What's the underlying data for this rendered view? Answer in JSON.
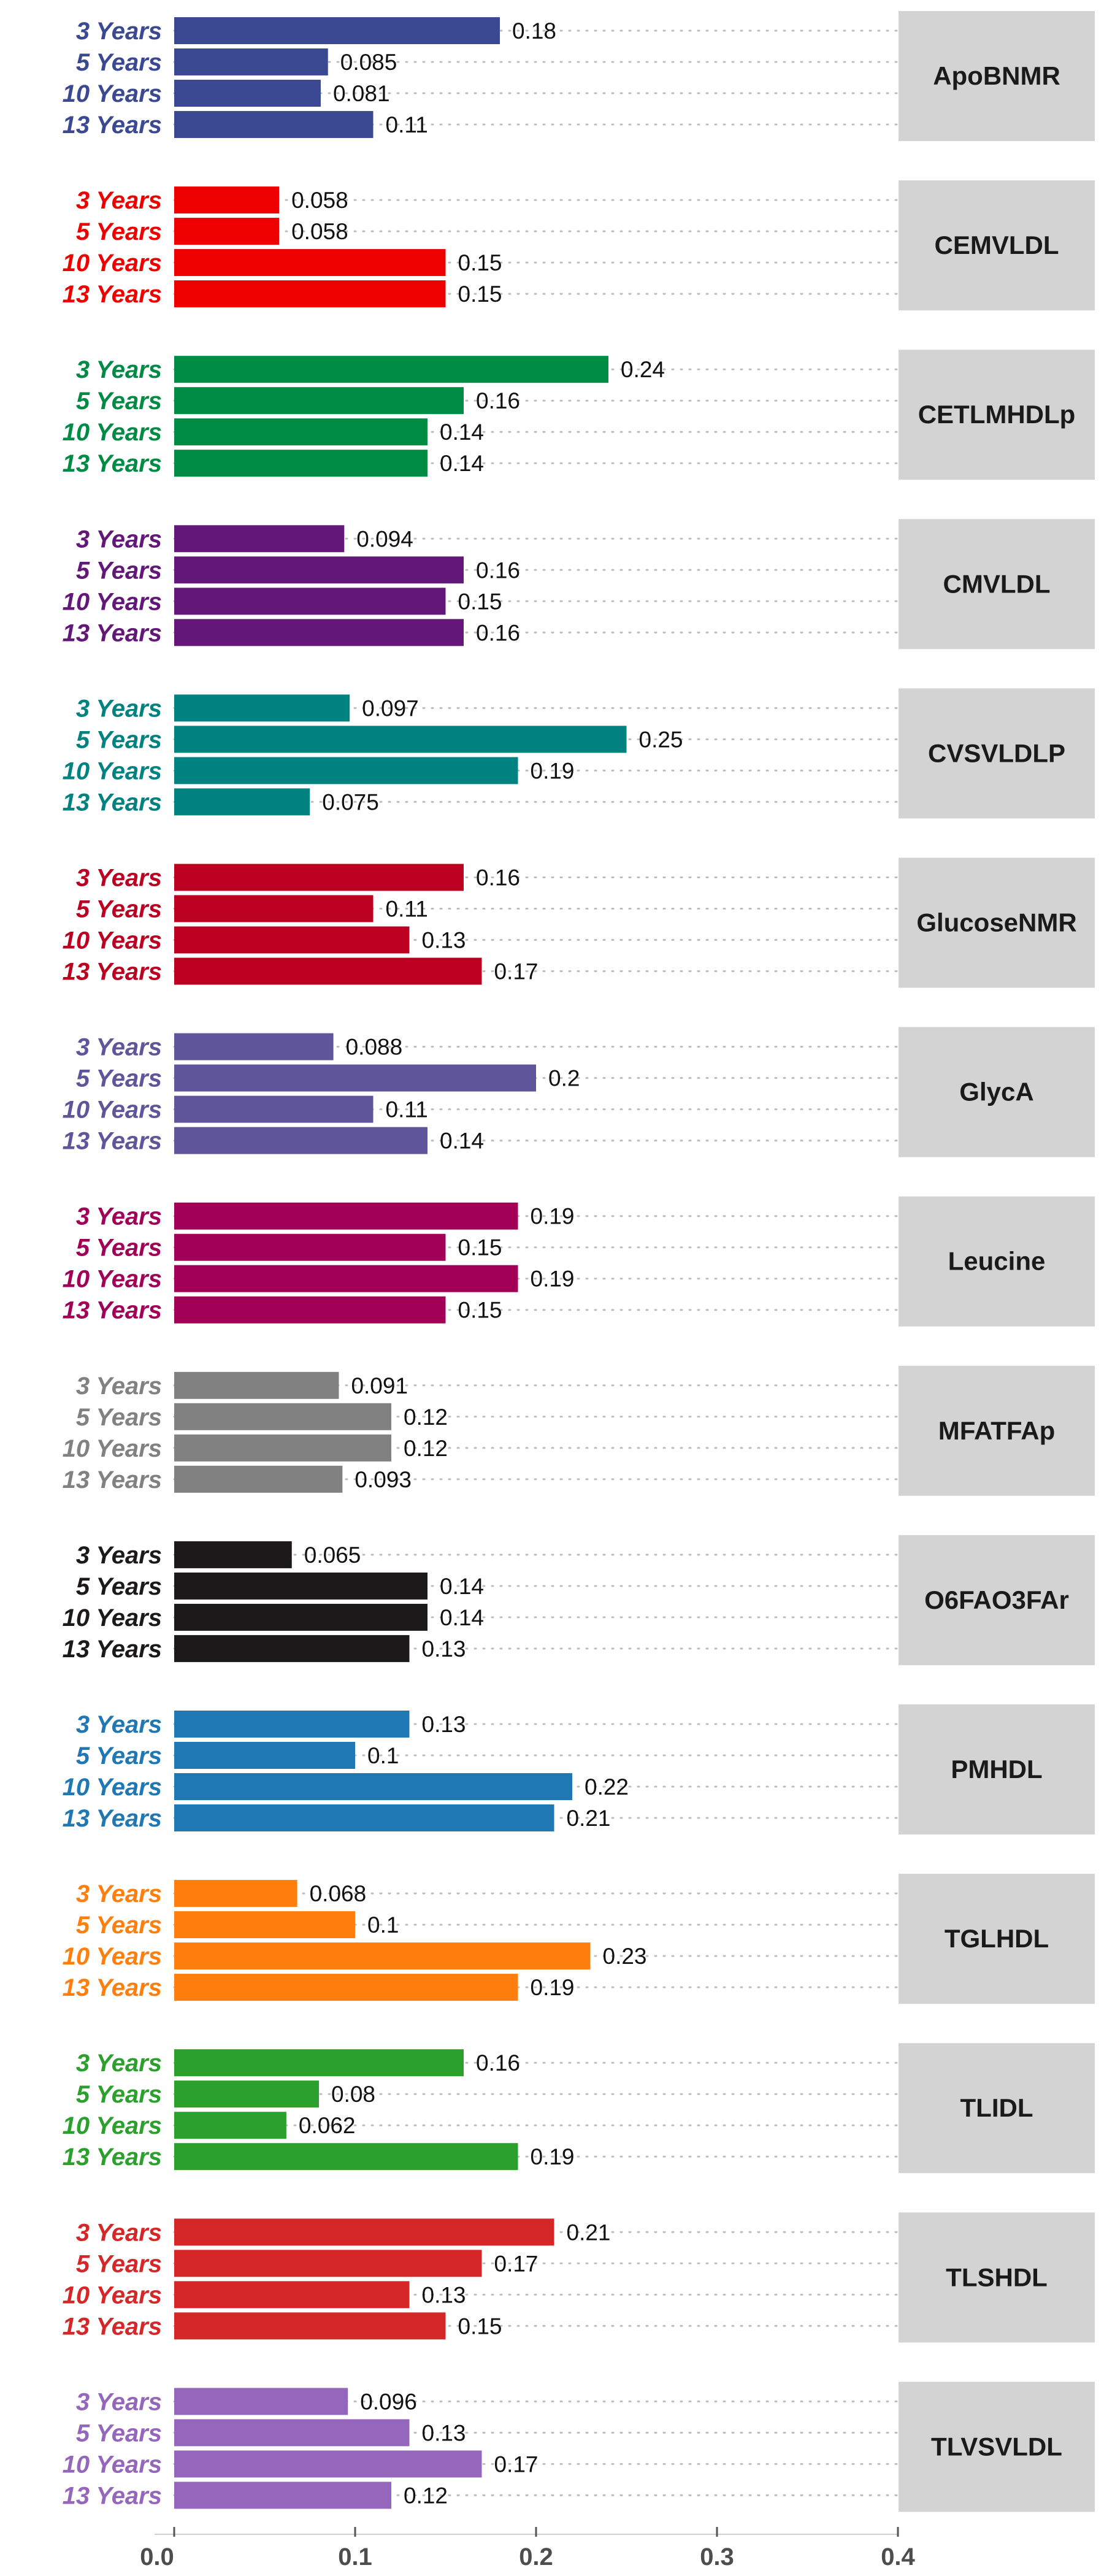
{
  "chart_data": {
    "type": "bar",
    "orientation": "horizontal",
    "layout": "faceted",
    "categories": [
      "3 Years",
      "5 Years",
      "10 Years",
      "13 Years"
    ],
    "xlim": [
      0,
      0.4
    ],
    "xticks": [
      0,
      0.1,
      0.2,
      0.3,
      0.4
    ],
    "xtick_labels": [
      "0.0",
      "0.1",
      "0.2",
      "0.3",
      "0.4"
    ],
    "grid": "dotted horizontal per bar",
    "panels": [
      {
        "name": "ApoBNMR",
        "color": "#3B4992",
        "values": [
          0.18,
          0.085,
          0.081,
          0.11
        ],
        "labels": [
          "0.18",
          "0.085",
          "0.081",
          "0.11"
        ]
      },
      {
        "name": "CEMVLDL",
        "color": "#EE0000",
        "values": [
          0.058,
          0.058,
          0.15,
          0.15
        ],
        "labels": [
          "0.058",
          "0.058",
          "0.15",
          "0.15"
        ]
      },
      {
        "name": "CETLMHDLp",
        "color": "#008B45",
        "values": [
          0.24,
          0.16,
          0.14,
          0.14
        ],
        "labels": [
          "0.24",
          "0.16",
          "0.14",
          "0.14"
        ]
      },
      {
        "name": "CMVLDL",
        "color": "#631879",
        "values": [
          0.094,
          0.16,
          0.15,
          0.16
        ],
        "labels": [
          "0.094",
          "0.16",
          "0.15",
          "0.16"
        ]
      },
      {
        "name": "CVSVLDLP",
        "color": "#008280",
        "values": [
          0.097,
          0.25,
          0.19,
          0.075
        ],
        "labels": [
          "0.097",
          "0.25",
          "0.19",
          "0.075"
        ]
      },
      {
        "name": "GlucoseNMR",
        "color": "#BB0021",
        "values": [
          0.16,
          0.11,
          0.13,
          0.17
        ],
        "labels": [
          "0.16",
          "0.11",
          "0.13",
          "0.17"
        ]
      },
      {
        "name": "GlycA",
        "color": "#5F559B",
        "values": [
          0.088,
          0.2,
          0.11,
          0.14
        ],
        "labels": [
          "0.088",
          "0.2",
          "0.11",
          "0.14"
        ]
      },
      {
        "name": "Leucine",
        "color": "#A20056",
        "values": [
          0.19,
          0.15,
          0.19,
          0.15
        ],
        "labels": [
          "0.19",
          "0.15",
          "0.19",
          "0.15"
        ]
      },
      {
        "name": "MFATFAp",
        "color": "#808180",
        "values": [
          0.091,
          0.12,
          0.12,
          0.093
        ],
        "labels": [
          "0.091",
          "0.12",
          "0.12",
          "0.093"
        ]
      },
      {
        "name": "O6FAO3FAr",
        "color": "#1B1919",
        "values": [
          0.065,
          0.14,
          0.14,
          0.13
        ],
        "labels": [
          "0.065",
          "0.14",
          "0.14",
          "0.13"
        ]
      },
      {
        "name": "PMHDL",
        "color": "#1F77B4",
        "values": [
          0.13,
          0.1,
          0.22,
          0.21
        ],
        "labels": [
          "0.13",
          "0.1",
          "0.22",
          "0.21"
        ]
      },
      {
        "name": "TGLHDL",
        "color": "#FF7F0E",
        "values": [
          0.068,
          0.1,
          0.23,
          0.19
        ],
        "labels": [
          "0.068",
          "0.1",
          "0.23",
          "0.19"
        ]
      },
      {
        "name": "TLIDL",
        "color": "#2CA02C",
        "values": [
          0.16,
          0.08,
          0.062,
          0.19
        ],
        "labels": [
          "0.16",
          "0.08",
          "0.062",
          "0.19"
        ]
      },
      {
        "name": "TLSHDL",
        "color": "#D62728",
        "values": [
          0.21,
          0.17,
          0.13,
          0.15
        ],
        "labels": [
          "0.21",
          "0.17",
          "0.13",
          "0.15"
        ]
      },
      {
        "name": "TLVSVLDL",
        "color": "#9467BD",
        "values": [
          0.096,
          0.13,
          0.17,
          0.12
        ],
        "labels": [
          "0.096",
          "0.13",
          "0.17",
          "0.12"
        ]
      }
    ]
  }
}
